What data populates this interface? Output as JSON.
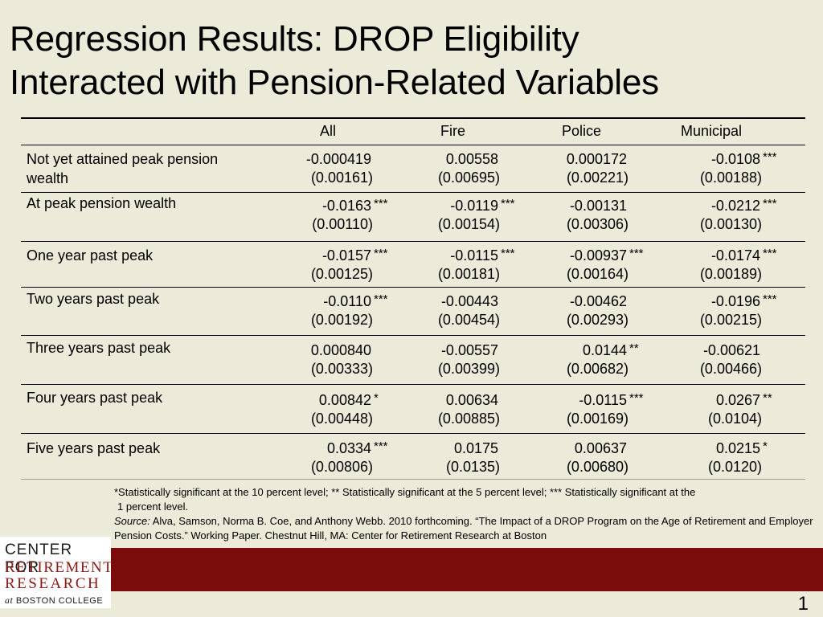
{
  "title": {
    "line1": "Regression Results: DROP Eligibility",
    "line2": "Interacted with Pension-Related Variables"
  },
  "table": {
    "columns": [
      "All",
      "Fire",
      "Police",
      "Municipal"
    ],
    "rows": [
      {
        "label": "Not yet attained peak pension wealth",
        "label_lines": [
          "Not yet attained peak pension",
          "wealth"
        ],
        "cells": [
          {
            "coef": "-0.000419",
            "stars": "",
            "se": "(0.00161)"
          },
          {
            "coef": "0.00558",
            "stars": "",
            "se": "(0.00695)"
          },
          {
            "coef": "0.000172",
            "stars": "",
            "se": "(0.00221)"
          },
          {
            "coef": "-0.0108",
            "stars": "***",
            "se": "(0.00188)"
          }
        ]
      },
      {
        "label": "At peak pension wealth",
        "label_lines": [
          "At peak pension wealth"
        ],
        "cells": [
          {
            "coef": "-0.0163",
            "stars": "***",
            "se": "(0.00110)"
          },
          {
            "coef": "-0.0119",
            "stars": "***",
            "se": "(0.00154)"
          },
          {
            "coef": "-0.00131",
            "stars": "",
            "se": "(0.00306)"
          },
          {
            "coef": "-0.0212",
            "stars": "***",
            "se": "(0.00130)"
          }
        ]
      },
      {
        "label": "One year past peak",
        "label_lines": [
          "One year past peak"
        ],
        "cells": [
          {
            "coef": "-0.0157",
            "stars": "***",
            "se": "(0.00125)"
          },
          {
            "coef": "-0.0115",
            "stars": "***",
            "se": "(0.00181)"
          },
          {
            "coef": "-0.00937",
            "stars": "***",
            "se": "(0.00164)"
          },
          {
            "coef": "-0.0174",
            "stars": "***",
            "se": "(0.00189)"
          }
        ]
      },
      {
        "label": "Two years past peak",
        "label_lines": [
          "Two years past peak"
        ],
        "cells": [
          {
            "coef": "-0.0110",
            "stars": "***",
            "se": "(0.00192)"
          },
          {
            "coef": "-0.00443",
            "stars": "",
            "se": "(0.00454)"
          },
          {
            "coef": "-0.00462",
            "stars": "",
            "se": "(0.00293)"
          },
          {
            "coef": "-0.0196",
            "stars": "***",
            "se": "(0.00215)"
          }
        ]
      },
      {
        "label": "Three years past peak",
        "label_lines": [
          "Three years past peak"
        ],
        "cells": [
          {
            "coef": "0.000840",
            "stars": "",
            "se": "(0.00333)"
          },
          {
            "coef": "-0.00557",
            "stars": "",
            "se": "(0.00399)"
          },
          {
            "coef": "0.0144",
            "stars": "**",
            "se": "(0.00682)"
          },
          {
            "coef": "-0.00621",
            "stars": "",
            "se": "(0.00466)"
          }
        ]
      },
      {
        "label": "Four years past peak",
        "label_lines": [
          "Four years past peak"
        ],
        "cells": [
          {
            "coef": "0.00842",
            "stars": "*",
            "se": "(0.00448)"
          },
          {
            "coef": "0.00634",
            "stars": "",
            "se": "(0.00885)"
          },
          {
            "coef": "-0.0115",
            "stars": "***",
            "se": "(0.00169)"
          },
          {
            "coef": "0.0267",
            "stars": "**",
            "se": "(0.0104)"
          }
        ]
      },
      {
        "label": "Five years past peak",
        "label_lines": [
          "Five years past peak"
        ],
        "cells": [
          {
            "coef": "0.0334",
            "stars": "***",
            "se": "(0.00806)"
          },
          {
            "coef": "0.0175",
            "stars": "",
            "se": "(0.0135)"
          },
          {
            "coef": "0.00637",
            "stars": "",
            "se": "(0.00680)"
          },
          {
            "coef": "0.0215",
            "stars": "*",
            "se": "(0.0120)"
          }
        ]
      }
    ]
  },
  "footnote": {
    "significance_line1": "*Statistically significant at the 10 percent level; ** Statistically significant at the 5 percent level; *** Statistically significant at the",
    "significance_line2": "1 percent level.",
    "source_label": "Source:",
    "source_text": " Alva, Samson, Norma B. Coe,  and Anthony Webb. 2010 forthcoming. “The Impact of a DROP Program on the Age of Retirement and Employer Pension Costs.” Working Paper. Chestnut Hill, MA: Center for Retirement Research at Boston"
  },
  "logo": {
    "line1": "CENTER FOR",
    "line2": "RETIREMENT",
    "line3": "RESEARCH",
    "line4_at": "at",
    "line4_rest": " BOSTON COLLEGE"
  },
  "page_number": "1",
  "colors": {
    "background": "#ecead8",
    "footer_bar": "#7b0c0c",
    "logo_accent": "#8b1a13"
  }
}
